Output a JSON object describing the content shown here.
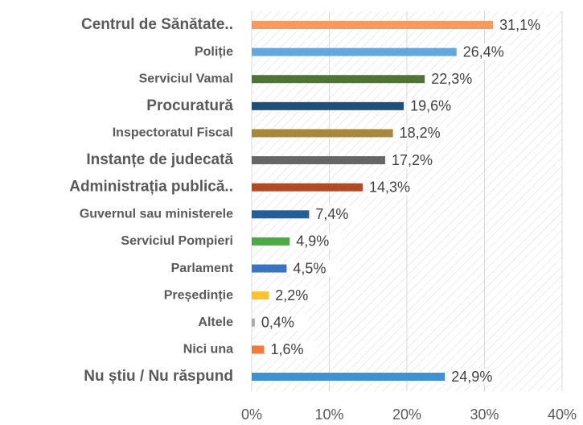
{
  "chart_data": {
    "type": "bar",
    "orientation": "horizontal",
    "categories": [
      "Centrul de Sănătate..",
      "Poliție",
      "Serviciul Vamal",
      "Procuratură",
      "Inspectoratul Fiscal ",
      "Instanțe de judecată",
      "Administrația publică..",
      "Guvernul sau ministerele",
      "Serviciul Pompieri",
      "Parlament",
      "Președinție",
      "Altele",
      "Nici una",
      "Nu știu / Nu răspund"
    ],
    "values": [
      31.1,
      26.4,
      22.3,
      19.6,
      18.2,
      17.2,
      14.3,
      7.4,
      4.9,
      4.5,
      2.2,
      0.4,
      1.6,
      24.9
    ],
    "value_labels": [
      "31,1%",
      "26,4%",
      "22,3%",
      "19,6%",
      "18,2%",
      "17,2%",
      "14,3%",
      "7,4%",
      "4,9%",
      "4,5%",
      "2,2%",
      "0,4%",
      "1,6%",
      "24,9%"
    ],
    "colors": [
      "#f79a62",
      "#62a8dc",
      "#4f7536",
      "#1f4e79",
      "#a8863a",
      "#666666",
      "#b24a26",
      "#235f96",
      "#4caa46",
      "#3b73c2",
      "#ffc12f",
      "#a9a9a9",
      "#f27a3e",
      "#3e92d2"
    ],
    "xlim": [
      0,
      40
    ],
    "xticks": [
      {
        "value": 0,
        "label": "0%"
      },
      {
        "value": 10,
        "label": "10%"
      },
      {
        "value": 20,
        "label": "20%"
      },
      {
        "value": 30,
        "label": "30%"
      },
      {
        "value": 40,
        "label": "40%"
      }
    ],
    "grid": true
  }
}
